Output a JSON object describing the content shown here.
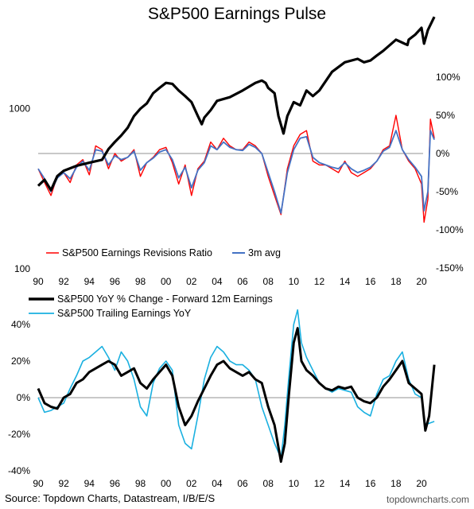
{
  "title": "S&P500 Earnings Pulse",
  "footer": {
    "source": "Source: Topdown Charts, Datastream, I/B/E/S",
    "brand": "topdowncharts.com"
  },
  "colors": {
    "sp500": "#000000",
    "revisions": "#ff0000",
    "avg3m": "#4472c4",
    "fwd": "#000000",
    "trailing": "#1ab0e0",
    "zero": "#a6a6a6"
  },
  "chart_data": [
    {
      "type": "line",
      "title": "S&P500 Earnings Pulse",
      "x_ticks": [
        "90",
        "92",
        "94",
        "96",
        "98",
        "00",
        "02",
        "04",
        "06",
        "08",
        "10",
        "12",
        "14",
        "16",
        "18",
        "20"
      ],
      "left_axis": {
        "scale": "log",
        "ylim": [
          100,
          3800
        ],
        "ticks": [
          "100",
          "1000"
        ]
      },
      "right_axis": {
        "ylim": [
          -150,
          150
        ],
        "ticks": [
          "100%",
          "50%",
          "0%",
          "-50%",
          "-100%",
          "-150%"
        ]
      },
      "legend": [
        "S&P500 Earnings Revisions Ratio",
        "3m avg"
      ],
      "series": [
        {
          "axis": "left",
          "x": [
            1990,
            1990.5,
            1991,
            1991.5,
            1992,
            1993,
            1994,
            1995,
            1995.5,
            1996,
            1996.5,
            1997,
            1997.5,
            1998,
            1998.5,
            1999,
            1999.5,
            2000,
            2000.5,
            2001,
            2001.5,
            2002,
            2002.5,
            2002.8,
            2003,
            2003.5,
            2004,
            2005,
            2006,
            2007,
            2007.5,
            2007.8,
            2008,
            2008.5,
            2008.8,
            2009.2,
            2009.5,
            2010,
            2010.5,
            2011,
            2011.5,
            2012,
            2013,
            2014,
            2015,
            2015.5,
            2016,
            2016.5,
            2017,
            2018,
            2018.9,
            2019,
            2019.5,
            2020,
            2020.2,
            2020.5,
            2021
          ],
          "y": [
            330,
            360,
            310,
            380,
            410,
            440,
            460,
            480,
            560,
            620,
            680,
            760,
            900,
            1000,
            1080,
            1250,
            1350,
            1450,
            1430,
            1300,
            1200,
            1100,
            900,
            800,
            880,
            980,
            1120,
            1180,
            1300,
            1450,
            1500,
            1450,
            1350,
            1250,
            900,
            700,
            900,
            1100,
            1050,
            1300,
            1200,
            1300,
            1700,
            1950,
            2050,
            1950,
            2000,
            2150,
            2300,
            2700,
            2500,
            2700,
            2900,
            3200,
            2550,
            3100,
            3750
          ]
        },
        {
          "name": "S&P500 Earnings Revisions Ratio",
          "axis": "right",
          "x": [
            1990,
            1990.5,
            1991,
            1991.5,
            1992,
            1992.5,
            1993,
            1993.5,
            1994,
            1994.5,
            1995,
            1995.5,
            1996,
            1996.5,
            1997,
            1997.5,
            1998,
            1998.5,
            1999,
            1999.5,
            2000,
            2000.5,
            2001,
            2001.5,
            2002,
            2002.5,
            2003,
            2003.5,
            2004,
            2004.5,
            2005,
            2005.5,
            2006,
            2006.5,
            2007,
            2007.5,
            2008,
            2008.5,
            2009,
            2009.5,
            2010,
            2010.5,
            2011,
            2011.5,
            2012,
            2012.5,
            2013,
            2013.5,
            2014,
            2014.5,
            2015,
            2015.5,
            2016,
            2016.5,
            2017,
            2017.5,
            2018,
            2018.5,
            2019,
            2019.5,
            2020,
            2020.2,
            2020.5,
            2020.7,
            2021
          ],
          "y": [
            -20,
            -38,
            -55,
            -30,
            -25,
            -38,
            -15,
            -8,
            -28,
            10,
            5,
            -20,
            0,
            -10,
            -5,
            5,
            -30,
            -12,
            -5,
            5,
            8,
            -12,
            -40,
            -15,
            -55,
            -20,
            -10,
            15,
            5,
            20,
            10,
            5,
            5,
            15,
            10,
            0,
            -30,
            -55,
            -80,
            -20,
            10,
            25,
            30,
            -10,
            -15,
            -15,
            -20,
            -25,
            -10,
            -25,
            -30,
            -25,
            -20,
            -10,
            5,
            10,
            50,
            5,
            -10,
            -20,
            -40,
            -90,
            -60,
            45,
            20
          ]
        },
        {
          "name": "3m avg",
          "axis": "right",
          "x": [
            1990,
            1990.5,
            1991,
            1991.5,
            1992,
            1992.5,
            1993,
            1993.5,
            1994,
            1994.5,
            1995,
            1995.5,
            1996,
            1996.5,
            1997,
            1997.5,
            1998,
            1998.5,
            1999,
            1999.5,
            2000,
            2000.5,
            2001,
            2001.5,
            2002,
            2002.5,
            2003,
            2003.5,
            2004,
            2004.5,
            2005,
            2005.5,
            2006,
            2006.5,
            2007,
            2007.5,
            2008,
            2008.5,
            2009,
            2009.5,
            2010,
            2010.5,
            2011,
            2011.5,
            2012,
            2012.5,
            2013,
            2013.5,
            2014,
            2014.5,
            2015,
            2015.5,
            2016,
            2016.5,
            2017,
            2017.5,
            2018,
            2018.5,
            2019,
            2019.5,
            2020,
            2020.2,
            2020.5,
            2020.7,
            2021
          ],
          "y": [
            -20,
            -33,
            -50,
            -32,
            -25,
            -33,
            -18,
            -10,
            -22,
            5,
            3,
            -15,
            -3,
            -8,
            -5,
            3,
            -22,
            -12,
            -6,
            2,
            5,
            -8,
            -32,
            -18,
            -45,
            -22,
            -12,
            10,
            5,
            15,
            8,
            5,
            4,
            12,
            8,
            0,
            -25,
            -50,
            -78,
            -25,
            5,
            20,
            22,
            -5,
            -12,
            -15,
            -18,
            -20,
            -12,
            -20,
            -25,
            -22,
            -18,
            -10,
            3,
            8,
            30,
            5,
            -8,
            -18,
            -30,
            -75,
            -50,
            30,
            18
          ]
        }
      ]
    },
    {
      "type": "line",
      "x_ticks": [
        "90",
        "92",
        "94",
        "96",
        "98",
        "00",
        "02",
        "04",
        "06",
        "08",
        "10",
        "12",
        "14",
        "16",
        "18",
        "20"
      ],
      "ylim": [
        -40,
        40
      ],
      "y_ticks": [
        "40%",
        "20%",
        "0%",
        "-20%",
        "-40%"
      ],
      "legend": [
        "S&P500 YoY % Change - Forward 12m Earnings",
        "S&P500 Trailing Earnings YoY"
      ],
      "series": [
        {
          "name": "S&P500 YoY % Change - Forward 12m Earnings",
          "x": [
            1990,
            1990.5,
            1991,
            1991.5,
            1992,
            1992.5,
            1993,
            1993.5,
            1994,
            1994.5,
            1995,
            1995.5,
            1996,
            1996.5,
            1997,
            1997.5,
            1998,
            1998.5,
            1999,
            1999.5,
            2000,
            2000.5,
            2001,
            2001.5,
            2002,
            2002.5,
            2003,
            2003.5,
            2004,
            2004.5,
            2005,
            2005.5,
            2006,
            2006.5,
            2007,
            2007.5,
            2008,
            2008.5,
            2009,
            2009.3,
            2009.6,
            2010,
            2010.3,
            2010.6,
            2011,
            2011.5,
            2012,
            2012.5,
            2013,
            2013.5,
            2014,
            2014.5,
            2015,
            2015.5,
            2016,
            2016.5,
            2017,
            2017.5,
            2018,
            2018.5,
            2019,
            2019.5,
            2020,
            2020.3,
            2020.6,
            2021
          ],
          "y": [
            5,
            -3,
            -5,
            -6,
            0,
            2,
            8,
            10,
            14,
            16,
            18,
            20,
            18,
            12,
            14,
            16,
            8,
            5,
            10,
            14,
            18,
            12,
            -5,
            -15,
            -10,
            -2,
            5,
            12,
            18,
            20,
            16,
            14,
            12,
            14,
            10,
            8,
            -5,
            -15,
            -35,
            -25,
            0,
            30,
            38,
            20,
            15,
            12,
            8,
            5,
            4,
            6,
            5,
            6,
            0,
            -2,
            -3,
            0,
            6,
            10,
            15,
            20,
            8,
            5,
            2,
            -18,
            -10,
            18
          ]
        },
        {
          "name": "S&P500 Trailing Earnings YoY",
          "x": [
            1990,
            1990.5,
            1991,
            1991.5,
            1992,
            1992.5,
            1993,
            1993.5,
            1994,
            1994.5,
            1995,
            1995.5,
            1996,
            1996.5,
            1997,
            1997.5,
            1998,
            1998.5,
            1999,
            1999.5,
            2000,
            2000.5,
            2001,
            2001.5,
            2002,
            2002.5,
            2003,
            2003.5,
            2004,
            2004.5,
            2005,
            2005.5,
            2006,
            2006.5,
            2007,
            2007.5,
            2008,
            2008.5,
            2009,
            2009.3,
            2009.6,
            2010,
            2010.3,
            2010.6,
            2011,
            2011.5,
            2012,
            2012.5,
            2013,
            2013.5,
            2014,
            2014.5,
            2015,
            2015.5,
            2016,
            2016.5,
            2017,
            2017.5,
            2018,
            2018.5,
            2019,
            2019.5,
            2020,
            2020.3,
            2020.6,
            2021
          ],
          "y": [
            0,
            -8,
            -7,
            -5,
            -3,
            5,
            12,
            20,
            22,
            25,
            28,
            22,
            15,
            25,
            20,
            10,
            -5,
            -10,
            8,
            16,
            20,
            15,
            -15,
            -25,
            -28,
            -10,
            10,
            22,
            28,
            25,
            20,
            18,
            18,
            15,
            10,
            -5,
            -15,
            -25,
            -33,
            -15,
            10,
            40,
            48,
            30,
            22,
            15,
            8,
            5,
            3,
            5,
            4,
            3,
            -5,
            -8,
            -10,
            2,
            10,
            12,
            20,
            25,
            10,
            2,
            0,
            -15,
            -14,
            -13
          ]
        }
      ]
    }
  ]
}
